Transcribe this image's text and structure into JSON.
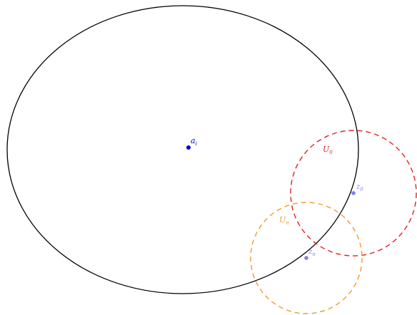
{
  "diagram": {
    "main_region": {
      "stroke": "#000000"
    },
    "center_point": {
      "label": "a",
      "subscript": "i",
      "color": "#0000cc"
    },
    "neighborhood_0": {
      "label": "U",
      "subscript": "0",
      "color": "#e02020",
      "dashed": true
    },
    "neighborhood_n": {
      "label": "U",
      "subscript": "n",
      "color": "#f39a2b",
      "dashed": true
    },
    "boundary_point_0": {
      "label": "z",
      "subscript": "0",
      "color": "#8080ee"
    },
    "boundary_point_n": {
      "label": "z",
      "subscript": "n",
      "color": "#8080ee"
    }
  }
}
